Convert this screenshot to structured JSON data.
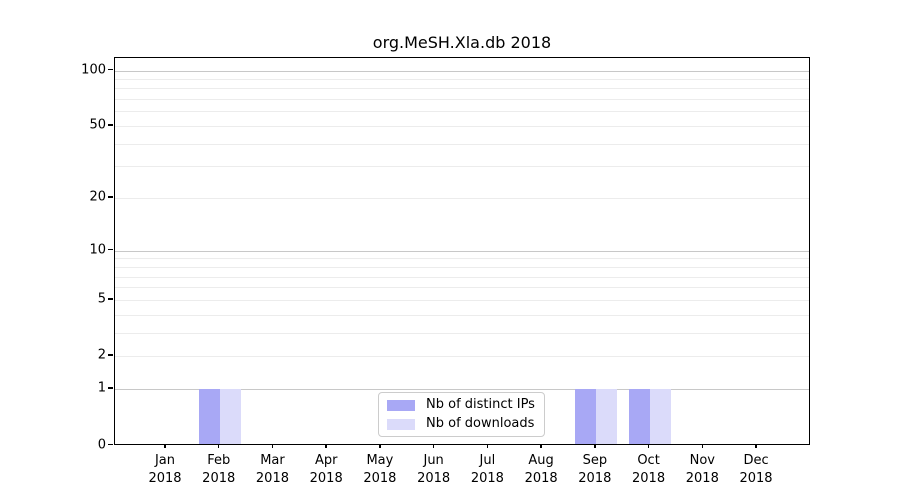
{
  "title": "org.MeSH.Xla.db 2018",
  "chart_data": {
    "type": "bar",
    "title": "org.MeSH.Xla.db 2018",
    "categories": [
      "Jan 2018",
      "Feb 2018",
      "Mar 2018",
      "Apr 2018",
      "May 2018",
      "Jun 2018",
      "Jul 2018",
      "Aug 2018",
      "Sep 2018",
      "Oct 2018",
      "Nov 2018",
      "Dec 2018"
    ],
    "series": [
      {
        "name": "Nb of distinct IPs",
        "color": "#a8a8f5",
        "values": [
          0,
          1,
          0,
          0,
          0,
          0,
          0,
          0,
          1,
          1,
          0,
          0
        ]
      },
      {
        "name": "Nb of downloads",
        "color": "#dbdbfa",
        "values": [
          0,
          1,
          0,
          0,
          0,
          0,
          0,
          0,
          1,
          1,
          0,
          0
        ]
      }
    ],
    "xlabel": "",
    "ylabel": "",
    "yscale": "log10(1+y)",
    "ylim": [
      0,
      117
    ],
    "yticks": [
      0,
      1,
      2,
      5,
      10,
      20,
      50,
      100
    ],
    "ytick_labels": [
      "0",
      "1",
      "2",
      "5",
      "10",
      "20",
      "50",
      "100"
    ],
    "grid": "horizontal",
    "gridline_values": {
      "decade": [
        1,
        10,
        100
      ],
      "minor": [
        2,
        3,
        4,
        5,
        6,
        7,
        8,
        9,
        20,
        30,
        40,
        50,
        60,
        70,
        80,
        90
      ]
    },
    "legend_position": "inside-bottom-center"
  },
  "colors": {
    "background": "#ffffff",
    "axis": "#000000",
    "text": "#000000",
    "grid_decade": "#c8c8c8",
    "grid_minor": "#ececec",
    "bar_distinct_ips": "#a8a8f5",
    "bar_downloads": "#dbdbfa",
    "legend_border": "#cccccc"
  }
}
